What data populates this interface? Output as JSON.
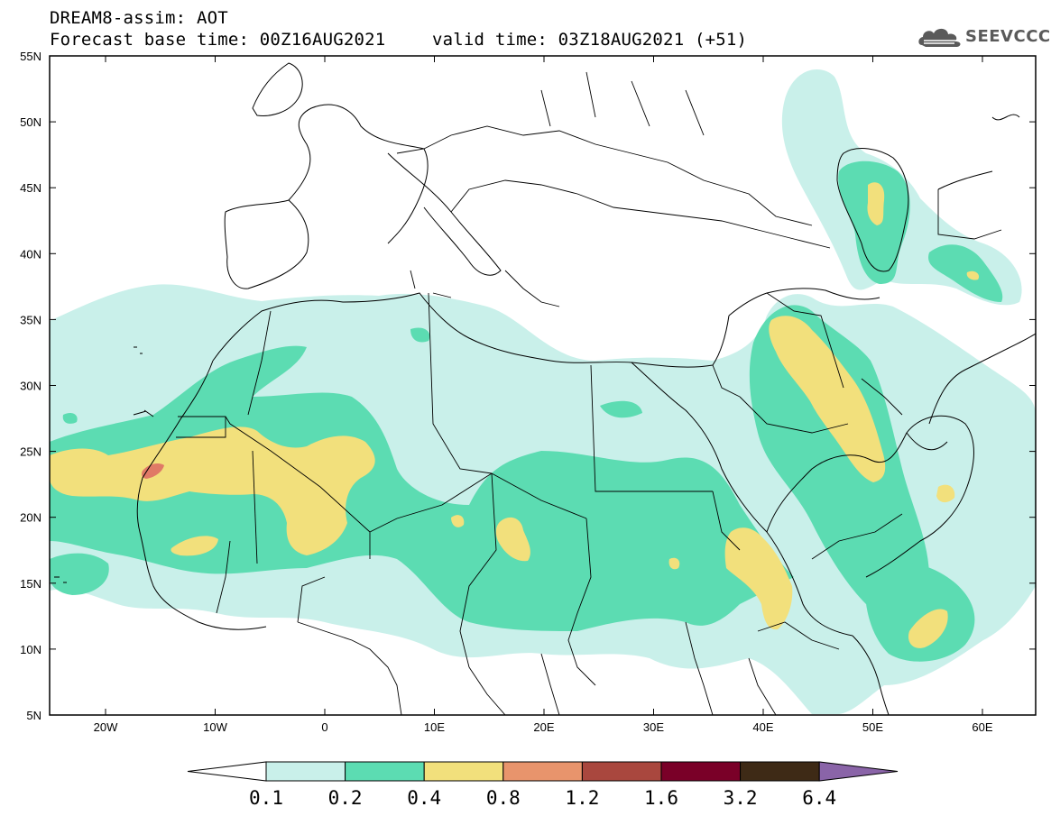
{
  "title": {
    "line1": "DREAM8-assim: AOT",
    "line2_base": "Forecast base time: 00Z16AUG2021",
    "line2_valid": "valid time: 03Z18AUG2021 (+51)"
  },
  "logo": {
    "text": "SEEVCCC",
    "icon": "cloud-logo-icon"
  },
  "axes": {
    "lon_labels": [
      "20W",
      "10W",
      "0",
      "10E",
      "20E",
      "30E",
      "40E",
      "50E",
      "60E"
    ],
    "lat_labels": [
      "55N",
      "50N",
      "45N",
      "40N",
      "35N",
      "30N",
      "25N",
      "20N",
      "15N",
      "10N",
      "5N"
    ]
  },
  "colorbar": {
    "labels": [
      "0.1",
      "0.2",
      "0.4",
      "0.8",
      "1.2",
      "1.6",
      "3.2",
      "6.4"
    ],
    "colors": [
      "#ffffff",
      "#c9f0ea",
      "#5cdcb2",
      "#f2e07c",
      "#e8946c",
      "#a9473e",
      "#7a0028",
      "#3e2a16",
      "#8a64a8"
    ]
  },
  "map_colors": {
    "land": "#ffffff",
    "border": "#000000",
    "aot_01": "#c9f0ea",
    "aot_02": "#5cdcb2",
    "aot_04": "#f2e07c",
    "aot_08": "#e07a66"
  }
}
